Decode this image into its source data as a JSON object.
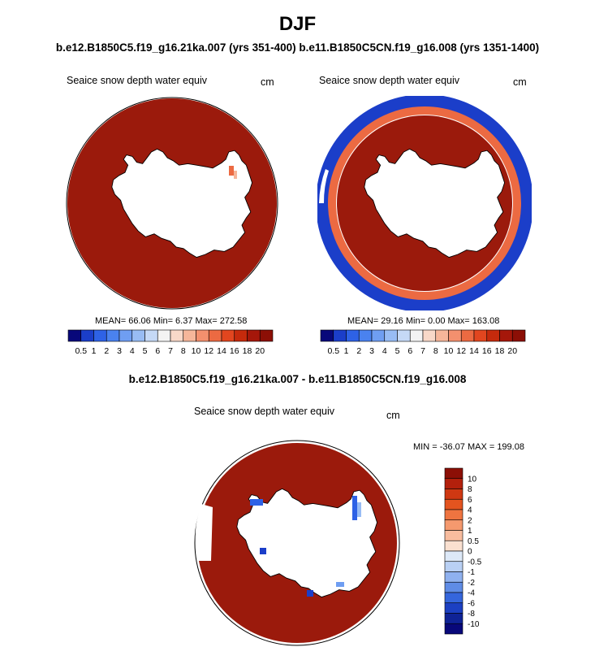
{
  "header": {
    "title": "DJF",
    "subtitle": "b.e12.B1850C5.f19_g16.21ka.007 (yrs 351-400) b.e11.B1850C5CN.f19_g16.008 (yrs 1351-1400)",
    "diff_title": "b.e12.B1850C5.f19_g16.21ka.007 - b.e11.B1850C5CN.f19_g16.008"
  },
  "colors": {
    "dark_red": "#9b1a0c",
    "map_outline": "#000000",
    "land": "#ffffff"
  },
  "chart_data": [
    {
      "type": "heatmap",
      "title": "Seaice snow depth water equiv",
      "units": "cm",
      "stats": {
        "mean": "66.06",
        "min": "6.37",
        "max": "272.58"
      },
      "stats_text": "MEAN=  66.06  Min=   6.37  Max= 272.58",
      "colorbar": {
        "levels": [
          "0.5",
          "1",
          "2",
          "3",
          "4",
          "5",
          "6",
          "7",
          "8",
          "10",
          "12",
          "14",
          "16",
          "18",
          "20"
        ],
        "colors": [
          "#08087a",
          "#1b3ec9",
          "#2e62e6",
          "#4a82ef",
          "#6f9ef2",
          "#98bcf4",
          "#c5d9f6",
          "#f3f3f3",
          "#f8d8c8",
          "#f6b69a",
          "#f3906e",
          "#ec6a42",
          "#e2461f",
          "#c52a0c",
          "#a5170a",
          "#8c0f06"
        ]
      }
    },
    {
      "type": "heatmap",
      "title": "Seaice snow depth water equiv",
      "units": "cm",
      "stats": {
        "mean": "29.16",
        "min": "0.00",
        "max": "163.08"
      },
      "stats_text": "MEAN=  29.16  Min=   0.00  Max= 163.08",
      "colorbar": {
        "levels": [
          "0.5",
          "1",
          "2",
          "3",
          "4",
          "5",
          "6",
          "7",
          "8",
          "10",
          "12",
          "14",
          "16",
          "18",
          "20"
        ],
        "colors": [
          "#08087a",
          "#1b3ec9",
          "#2e62e6",
          "#4a82ef",
          "#6f9ef2",
          "#98bcf4",
          "#c5d9f6",
          "#f3f3f3",
          "#f8d8c8",
          "#f6b69a",
          "#f3906e",
          "#ec6a42",
          "#e2461f",
          "#c52a0c",
          "#a5170a",
          "#8c0f06"
        ]
      }
    },
    {
      "type": "heatmap",
      "title": "Seaice snow depth water equiv",
      "units": "cm",
      "stats": {
        "min": "-36.07",
        "max": "199.08"
      },
      "stats_text": "MIN = -36.07 MAX = 199.08",
      "colorbar": {
        "levels": [
          "10",
          "8",
          "6",
          "4",
          "2",
          "1",
          "0.5",
          "0",
          "-0.5",
          "-1",
          "-2",
          "-4",
          "-6",
          "-8",
          "-10"
        ],
        "colors": [
          "#8c0f06",
          "#b3200c",
          "#cf3812",
          "#e4541f",
          "#ef7440",
          "#f5996e",
          "#f8bc9e",
          "#fae0d0",
          "#dde9f8",
          "#b9d0f4",
          "#8fb1ef",
          "#5f8ce6",
          "#3566dc",
          "#1c40c2",
          "#0f2396",
          "#08087a"
        ]
      }
    }
  ]
}
